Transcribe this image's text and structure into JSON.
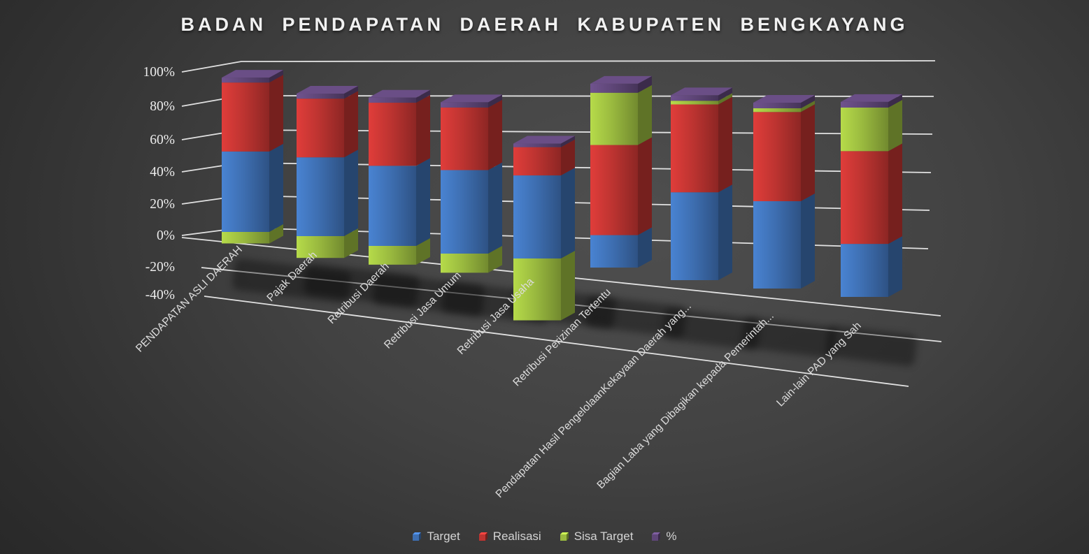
{
  "title": "BADAN PENDAPATAN DAERAH KABUPATEN BENGKAYANG",
  "colors": {
    "target": "#3e6fb2",
    "realisasi": "#be3431",
    "sisa_target": "#9aba3f",
    "percent": "#5f4678",
    "gridline": "#efefef",
    "tick_text": "#ececec",
    "category_text": "#dcdcdc",
    "legend_text": "#d4d4d4",
    "title_text": "#f1f1f1",
    "background_center": "#4f4f4f",
    "background_edge": "#252525",
    "shadow": "#000000"
  },
  "y_axis": {
    "ticks": [
      "100%",
      "80%",
      "60%",
      "40%",
      "20%",
      "0%",
      "-20%",
      "-40%"
    ],
    "min": -40,
    "max": 100,
    "step": 20
  },
  "legend": {
    "items": [
      {
        "label": "Target",
        "color": "#3e6fb2"
      },
      {
        "label": "Realisasi",
        "color": "#be3431"
      },
      {
        "label": "Sisa Target",
        "color": "#9aba3f"
      },
      {
        "label": "%",
        "color": "#5f4678"
      }
    ]
  },
  "chart_data": {
    "type": "bar",
    "subtype": "3d-stacked-column",
    "title": "BADAN PENDAPATAN DAERAH KABUPATEN BENGKAYANG",
    "categories": [
      "PENDAPATAN ASLI DAERAH",
      "Pajak Daerah",
      "Retribusi Daerah",
      "Retribusi Jasa Umum",
      "Retribusi Jasa Usaha",
      "Retribusi Perizinan Tertentu",
      "Pendapatan Hasil PengelolaanKekayaan Daerah yang...",
      "Bagian Laba yang Dibagikan kepada Pemerintah...",
      "Lain-lain PAD yang Sah"
    ],
    "series": [
      {
        "name": "Target",
        "color": "#3e6fb2",
        "values": [
          49,
          47,
          47,
          48,
          47,
          18,
          48,
          47,
          28
        ]
      },
      {
        "name": "Realisasi",
        "color": "#be3431",
        "values": [
          42,
          35,
          37,
          36,
          16,
          50,
          48,
          48,
          49
        ]
      },
      {
        "name": "Sisa Target",
        "color": "#9aba3f",
        "values": [
          -7,
          -13,
          -11,
          -11,
          -35,
          29,
          2,
          2,
          23
        ]
      },
      {
        "name": "%",
        "color": "#5f4678",
        "values": [
          3,
          3,
          3,
          3,
          2,
          5,
          3,
          3,
          3
        ]
      }
    ],
    "ylabel": "",
    "xlabel": "",
    "ylim": [
      -40,
      100
    ],
    "grid": true,
    "legend_position": "bottom"
  }
}
